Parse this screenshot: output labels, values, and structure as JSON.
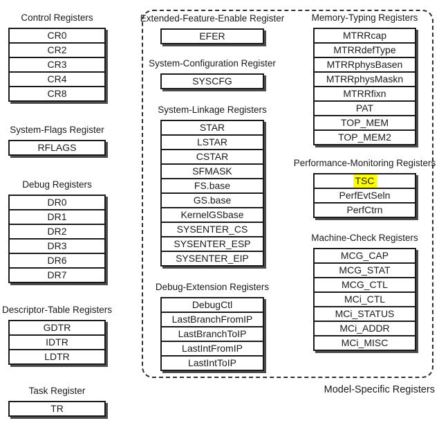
{
  "diagram": {
    "msr_group_label": "Model-Specific Registers",
    "highlight_color": "#ffff00",
    "border_color": "#1a1a1a",
    "shadow_color": "#4d4d4d"
  },
  "panels": {
    "control": {
      "title": "Control Registers",
      "rows": [
        "CR0",
        "CR2",
        "CR3",
        "CR4",
        "CR8"
      ]
    },
    "system_flags": {
      "title": "System-Flags Register",
      "rows": [
        "RFLAGS"
      ]
    },
    "debug": {
      "title": "Debug Registers",
      "rows": [
        "DR0",
        "DR1",
        "DR2",
        "DR3",
        "DR6",
        "DR7"
      ]
    },
    "descriptor_table": {
      "title": "Descriptor-Table Registers",
      "rows": [
        "GDTR",
        "IDTR",
        "LDTR"
      ]
    },
    "task": {
      "title": "Task Register",
      "rows": [
        "TR"
      ]
    },
    "efer": {
      "title": "Extended-Feature-Enable Register",
      "rows": [
        "EFER"
      ]
    },
    "syscfg": {
      "title": "System-Configuration Register",
      "rows": [
        "SYSCFG"
      ]
    },
    "system_linkage": {
      "title": "System-Linkage Registers",
      "rows": [
        "STAR",
        "LSTAR",
        "CSTAR",
        "SFMASK",
        "FS.base",
        "GS.base",
        "KernelGSbase",
        "SYSENTER_CS",
        "SYSENTER_ESP",
        "SYSENTER_EIP"
      ]
    },
    "debug_extension": {
      "title": "Debug-Extension Registers",
      "rows": [
        "DebugCtl",
        "LastBranchFromIP",
        "LastBranchToIP",
        "LastIntFromIP",
        "LastIntToIP"
      ]
    },
    "memory_typing": {
      "title": "Memory-Typing Registers",
      "rows": [
        "MTRRcap",
        "MTRRdefType",
        "MTRRphysBasen",
        "MTRRphysMaskn",
        "MTRRfixn",
        "PAT",
        "TOP_MEM",
        "TOP_MEM2"
      ]
    },
    "performance_monitoring": {
      "title": "Performance-Monitoring Registers",
      "rows": [
        {
          "label": "TSC",
          "highlight": "#ffff00"
        },
        "PerfEvtSeln",
        "PerfCtrn"
      ]
    },
    "machine_check": {
      "title": "Machine-Check Registers",
      "rows": [
        "MCG_CAP",
        "MCG_STAT",
        "MCG_CTL",
        "MCi_CTL",
        "MCi_STATUS",
        "MCi_ADDR",
        "MCi_MISC"
      ]
    }
  }
}
